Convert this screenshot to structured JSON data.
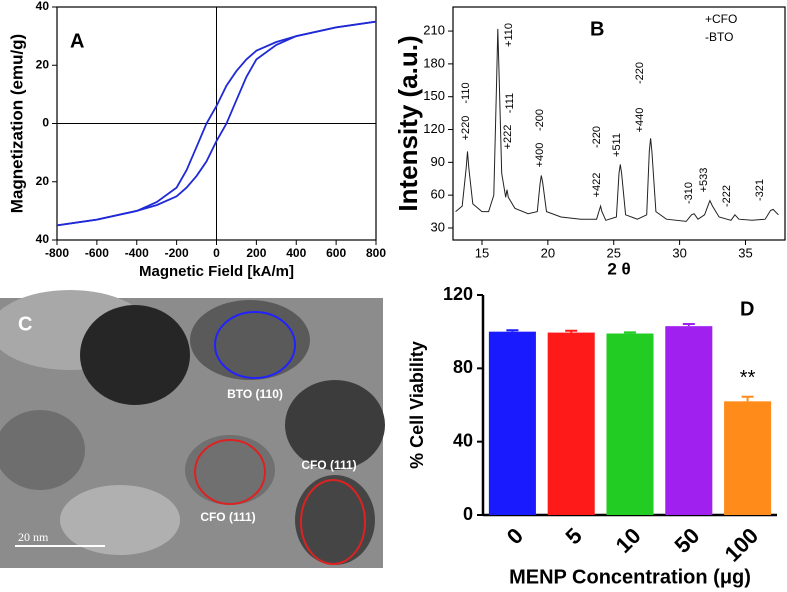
{
  "chart_data": [
    {
      "type": "line",
      "panel_label": "A",
      "x_label": "Magnetic Field [kA/m]",
      "y_label": "Magnetization (emu/g)",
      "x": [
        -800,
        -600,
        -400,
        -300,
        -200,
        -150,
        -100,
        -50,
        0,
        50,
        100,
        150,
        200,
        300,
        400,
        600,
        800
      ],
      "series": [
        {
          "color": "#1f2ad6",
          "values": [
            -35,
            -33,
            -30,
            -27,
            -22,
            -16,
            -8,
            0,
            6,
            13,
            18,
            22,
            25,
            28,
            30,
            33,
            35
          ]
        },
        {
          "color": "#1f2ad6",
          "values": [
            -35,
            -33,
            -30,
            -28,
            -25,
            -22,
            -18,
            -13,
            -6,
            0,
            8,
            16,
            22,
            27,
            30,
            33,
            35
          ]
        }
      ],
      "xlim": [
        -800,
        800
      ],
      "ylim": [
        -40,
        40
      ],
      "xticks": [
        -800,
        -600,
        -400,
        -200,
        0,
        200,
        400,
        600,
        800
      ],
      "yticks": [
        {
          "value": -40,
          "label": "40"
        },
        {
          "value": -20,
          "label": "20"
        },
        0,
        20,
        40
      ]
    },
    {
      "type": "line",
      "panel_label": "B",
      "x_label": "2 θ",
      "y_label": "Intensity (a.u.)",
      "annotations": [
        "+CFO",
        "-BTO"
      ],
      "peak_labels": [
        "+220",
        "-110",
        "+110",
        "-111",
        "+222",
        "-200",
        "+400",
        "-220",
        "+422",
        "+511",
        "-220",
        "+440",
        "-310",
        "+533",
        "-222",
        "-321"
      ],
      "x": [
        13.0,
        13.5,
        13.8,
        13.9,
        14.0,
        14.3,
        15.0,
        15.5,
        15.9,
        16.1,
        16.2,
        16.3,
        16.5,
        16.8,
        16.9,
        17.0,
        17.5,
        18.5,
        19.2,
        19.4,
        19.5,
        19.6,
        19.9,
        21.0,
        22.5,
        23.7,
        23.9,
        24.0,
        24.1,
        24.4,
        25.2,
        25.4,
        25.5,
        25.6,
        25.9,
        26.8,
        27.5,
        27.7,
        27.8,
        27.9,
        28.2,
        29.0,
        30.5,
        30.9,
        31.1,
        31.4,
        31.9,
        32.2,
        32.3,
        32.5,
        33.0,
        33.9,
        34.2,
        34.5,
        35.5,
        36.5,
        36.9,
        37.1,
        37.5
      ],
      "series": [
        {
          "color": "#222222",
          "values": [
            45,
            50,
            85,
            100,
            85,
            52,
            45,
            45,
            60,
            160,
            212,
            170,
            80,
            58,
            65,
            58,
            48,
            43,
            45,
            70,
            78,
            72,
            45,
            40,
            38,
            38,
            46,
            50,
            45,
            37,
            40,
            80,
            88,
            80,
            42,
            38,
            42,
            100,
            112,
            100,
            45,
            38,
            36,
            42,
            43,
            38,
            42,
            52,
            55,
            50,
            40,
            37,
            42,
            38,
            37,
            38,
            46,
            47,
            42
          ]
        }
      ],
      "xlim": [
        12.8,
        38
      ],
      "ylim": [
        19,
        232
      ],
      "xticks": [
        15,
        20,
        25,
        30,
        35
      ],
      "yticks": [
        30,
        60,
        90,
        120,
        150,
        180,
        210
      ]
    },
    {
      "type": "bar",
      "panel_label": "D",
      "x_label": "MENP Concentration (μg)",
      "y_label": "% Cell Viability",
      "categories": [
        "0",
        "5",
        "10",
        "50",
        "100"
      ],
      "values": [
        100,
        99.5,
        99,
        103,
        62
      ],
      "errors": [
        0.8,
        1,
        0.6,
        1.2,
        2.5
      ],
      "colors": [
        "#1a1aff",
        "#ff1a1a",
        "#22cc22",
        "#a020f0",
        "#ff8c1a"
      ],
      "annotations": [
        "**"
      ],
      "ylim": [
        0,
        120
      ],
      "yticks": [
        0,
        40,
        80,
        120
      ]
    }
  ],
  "image": {
    "panel_label": "C",
    "labels": [
      "BTO (110)",
      "CFO (111)",
      "CFO (111)"
    ],
    "scale_bar": "20 nm"
  }
}
